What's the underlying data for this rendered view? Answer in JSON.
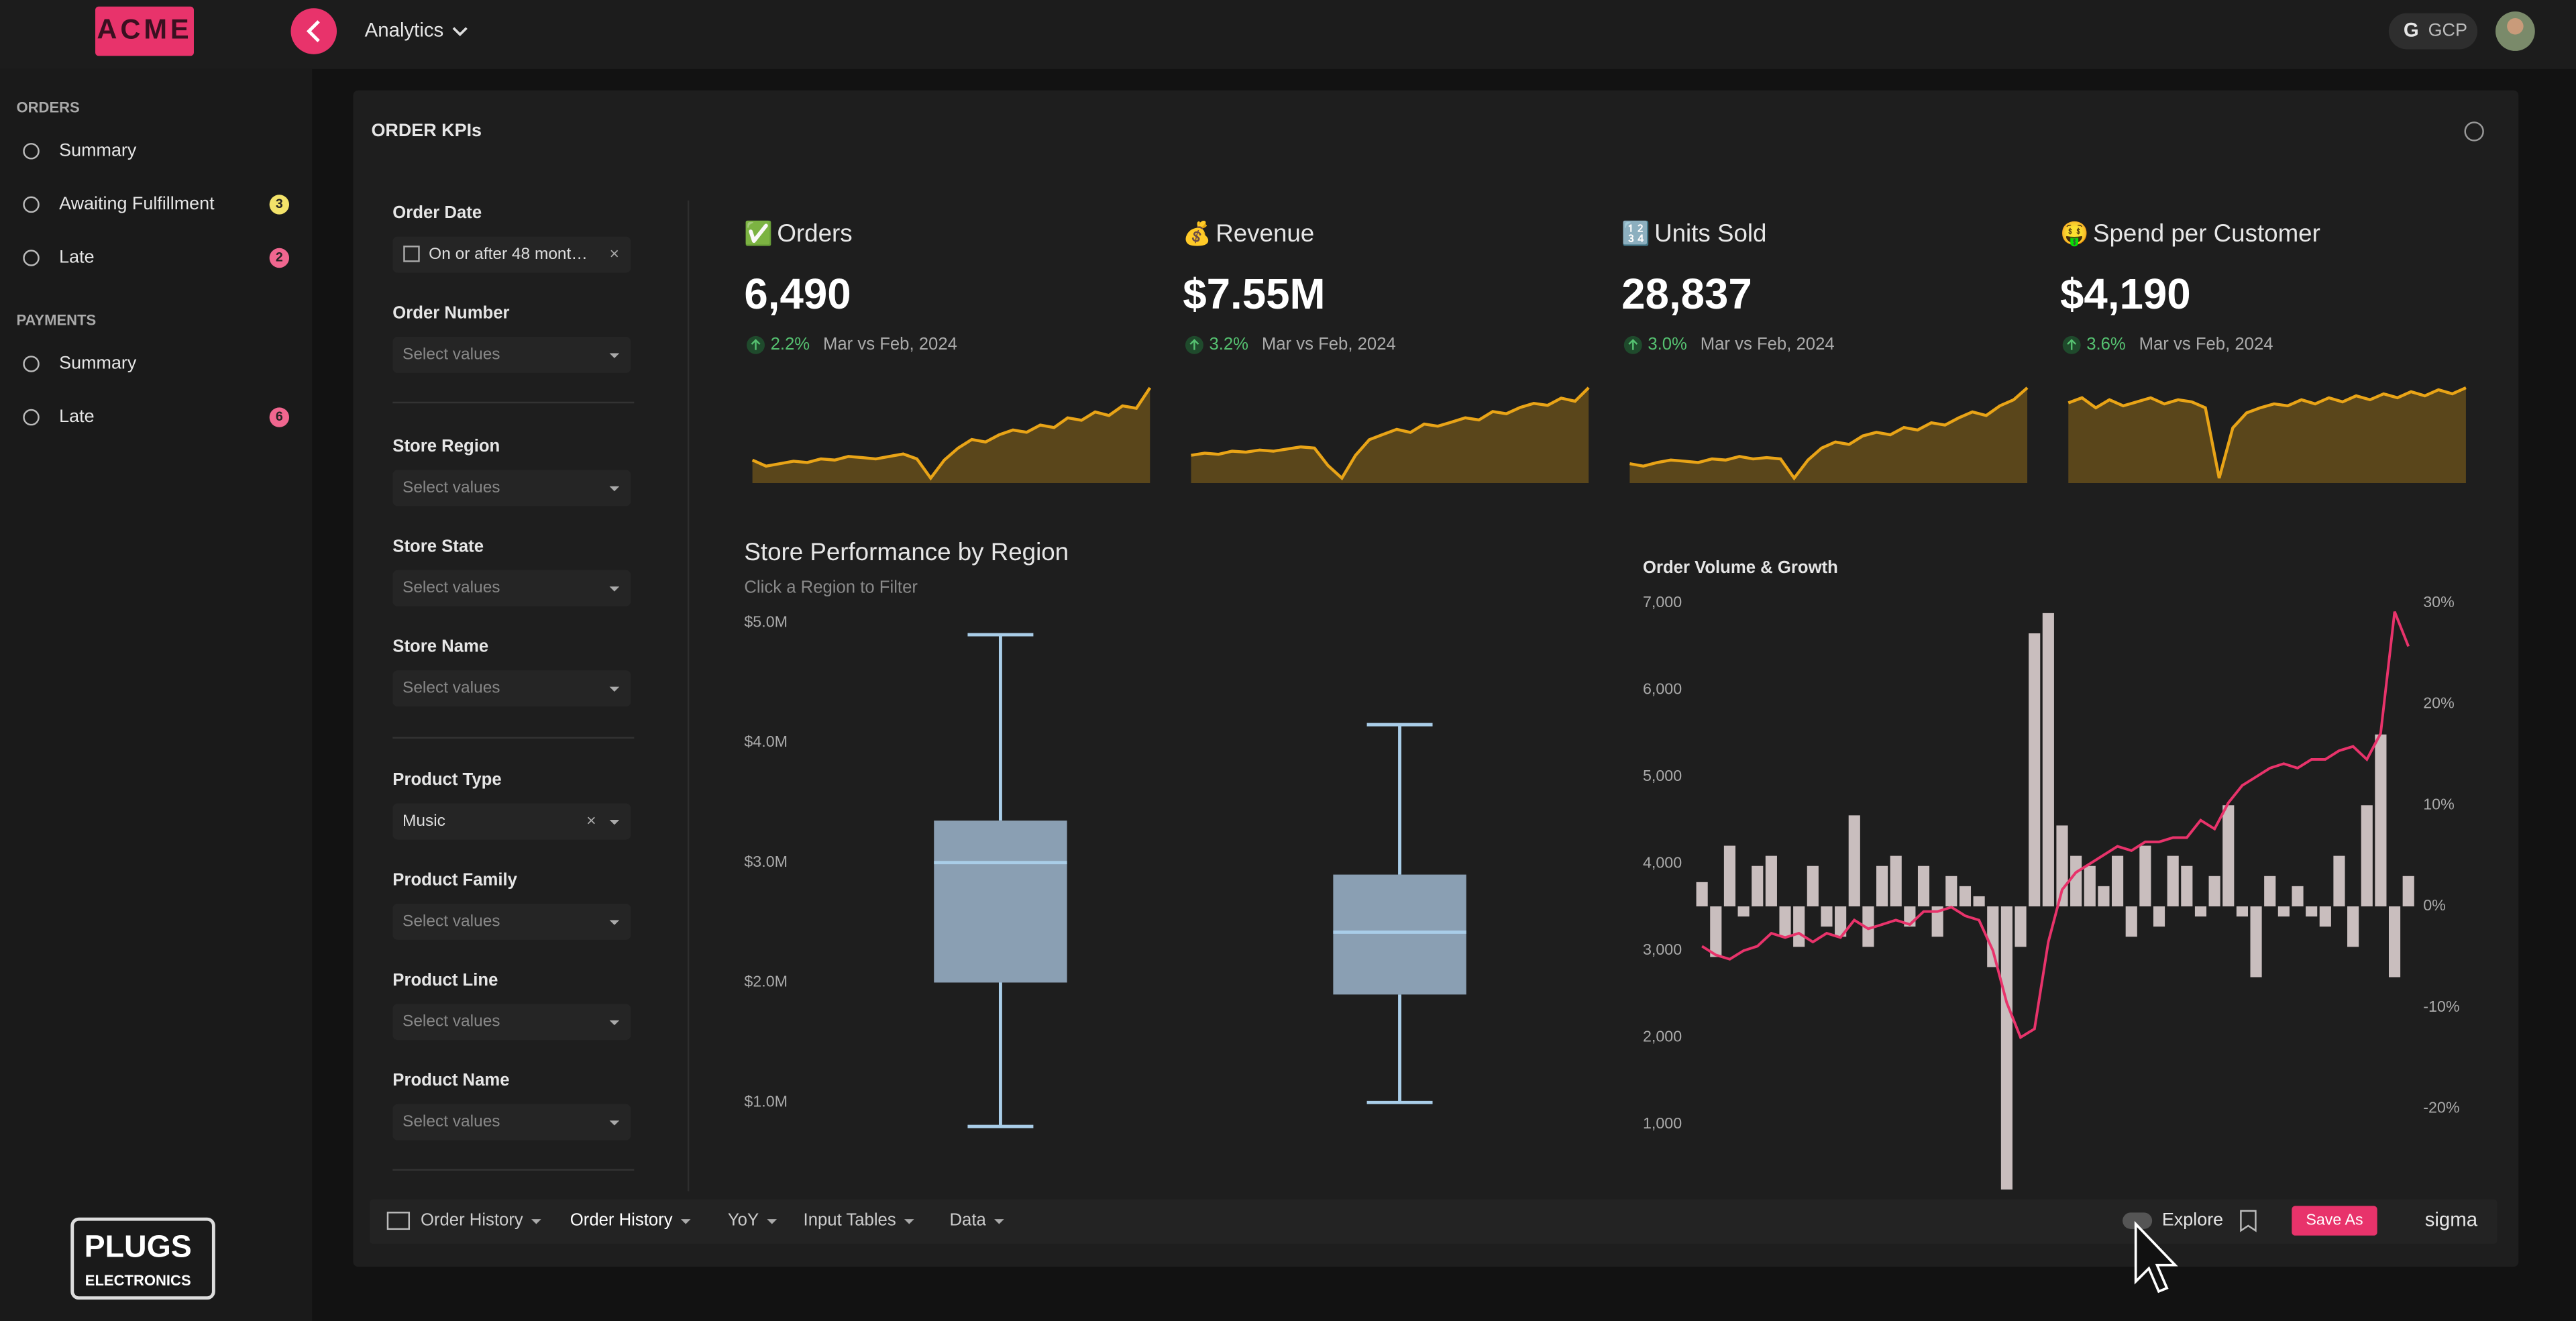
{
  "header": {
    "logo": "ACME",
    "workbook": "Analytics",
    "connection": "GCP"
  },
  "sidebar": {
    "sections": [
      {
        "title": "ORDERS",
        "items": [
          {
            "label": "Summary"
          },
          {
            "label": "Awaiting Fulfillment",
            "badge": "3",
            "badge_color": "#f3e36a"
          },
          {
            "label": "Late",
            "badge": "2",
            "badge_color": "#f0668f"
          }
        ]
      },
      {
        "title": "PAYMENTS",
        "items": [
          {
            "label": "Summary"
          },
          {
            "label": "Late",
            "badge": "6",
            "badge_color": "#f0668f"
          }
        ]
      }
    ],
    "brand": {
      "name": "PLUGS",
      "tagline": "ELECTRONICS"
    }
  },
  "page": {
    "title": "ORDER KPIs",
    "filters": [
      {
        "label": "Order Date",
        "value": "On or after 48 mont…"
      },
      {
        "label": "Order Number",
        "placeholder": "Select values"
      },
      {
        "label": "Store Region",
        "placeholder": "Select values"
      },
      {
        "label": "Store State",
        "placeholder": "Select values"
      },
      {
        "label": "Store Name",
        "placeholder": "Select values"
      },
      {
        "label": "Product Type",
        "value": "Music"
      },
      {
        "label": "Product Family",
        "placeholder": "Select values"
      },
      {
        "label": "Product Line",
        "placeholder": "Select values"
      },
      {
        "label": "Product Name",
        "placeholder": "Select values"
      }
    ]
  },
  "kpis": [
    {
      "icon": "✅",
      "title": "Orders",
      "value": "6,490",
      "change": "2.2%",
      "period": "Mar vs Feb, 2024",
      "color": "#e9a417",
      "sparkline": [
        35,
        30,
        32,
        34,
        33,
        36,
        35,
        38,
        37,
        36,
        38,
        40,
        36,
        20,
        35,
        45,
        52,
        50,
        56,
        60,
        58,
        64,
        62,
        70,
        68,
        75,
        72,
        80,
        78,
        95
      ]
    },
    {
      "icon": "💰",
      "title": "Revenue",
      "value": "$7.55M",
      "change": "3.2%",
      "period": "Mar vs Feb, 2024",
      "color": "#e9a417",
      "sparkline": [
        30,
        32,
        31,
        34,
        33,
        35,
        34,
        36,
        38,
        37,
        20,
        8,
        30,
        45,
        50,
        55,
        52,
        60,
        58,
        62,
        66,
        64,
        72,
        70,
        76,
        80,
        78,
        85,
        82,
        95
      ]
    },
    {
      "icon": "🔢",
      "title": "Units Sold",
      "value": "28,837",
      "change": "3.0%",
      "period": "Mar vs Feb, 2024",
      "color": "#e9a417",
      "sparkline": [
        32,
        30,
        33,
        35,
        34,
        33,
        36,
        35,
        38,
        36,
        37,
        36,
        20,
        35,
        45,
        50,
        48,
        55,
        58,
        56,
        62,
        60,
        66,
        64,
        70,
        75,
        72,
        80,
        85,
        95
      ]
    },
    {
      "icon": "🤑",
      "title": "Spend per Customer",
      "value": "$4,190",
      "change": "3.6%",
      "period": "Mar vs Feb, 2024",
      "color": "#e9a417",
      "sparkline": [
        75,
        80,
        70,
        78,
        72,
        76,
        80,
        74,
        78,
        76,
        70,
        0,
        50,
        65,
        70,
        74,
        72,
        78,
        74,
        80,
        76,
        82,
        78,
        84,
        80,
        86,
        82,
        88,
        84,
        90
      ]
    }
  ],
  "chart_data": [
    {
      "type": "box",
      "title": "Store Performance by Region",
      "subtitle": "Click a Region to Filter",
      "color": "#8a9fb3",
      "line_color": "#a9cde8",
      "boxes": [
        {
          "min": 800000,
          "q1": 2000000,
          "median": 3000000,
          "q3": 3350000,
          "max": 4900000
        },
        {
          "min": 1000000,
          "q1": 1900000,
          "median": 2420000,
          "q3": 2900000,
          "max": 4150000
        }
      ],
      "ylim": [
        500000,
        5000000
      ],
      "yticks": [
        {
          "value": 1000000,
          "label": "$1.0M"
        },
        {
          "value": 2000000,
          "label": "$2.0M"
        },
        {
          "value": 3000000,
          "label": "$3.0M"
        },
        {
          "value": 4000000,
          "label": "$4.0M"
        },
        {
          "value": 5000000,
          "label": "$5.0M"
        }
      ]
    },
    {
      "type": "combo",
      "title": "Order Volume & Growth",
      "series": [
        {
          "type": "bar",
          "axis": "y2",
          "color": "#c9bebe",
          "values": [
            2.4,
            -5,
            6,
            -1,
            4,
            5,
            -3,
            -4,
            4,
            -2,
            -3,
            9,
            -4,
            4,
            5,
            -2,
            4,
            -3,
            3,
            2,
            1,
            -6,
            -28,
            -4,
            27,
            29,
            8,
            5,
            4,
            2,
            5,
            -3,
            6,
            -2,
            5,
            4,
            -1,
            3,
            10,
            -1,
            -7,
            3,
            -1,
            2,
            -1,
            -2,
            5,
            -4,
            10,
            17,
            -7,
            3
          ]
        },
        {
          "type": "line",
          "color": "#e8336b",
          "values": [
            3050,
            2950,
            2900,
            3000,
            3050,
            3200,
            3150,
            3200,
            3100,
            3200,
            3150,
            3350,
            3250,
            3300,
            3350,
            3300,
            3450,
            3450,
            3500,
            3400,
            3350,
            3000,
            2400,
            2000,
            2100,
            3100,
            3700,
            3900,
            4000,
            4100,
            4200,
            4150,
            4250,
            4250,
            4300,
            4300,
            4500,
            4400,
            4700,
            4900,
            5000,
            5100,
            5150,
            5100,
            5200,
            5200,
            5300,
            5350,
            5200,
            5500,
            6900,
            6500
          ]
        }
      ],
      "ylim": [
        250,
        7000
      ],
      "yticks": [
        {
          "value": 1000,
          "label": "1,000"
        },
        {
          "value": 2000,
          "label": "2,000"
        },
        {
          "value": 3000,
          "label": "3,000"
        },
        {
          "value": 4000,
          "label": "4,000"
        },
        {
          "value": 5000,
          "label": "5,000"
        },
        {
          "value": 6000,
          "label": "6,000"
        },
        {
          "value": 7000,
          "label": "7,000"
        }
      ],
      "y2lim": [
        -28,
        30
      ],
      "y2ticks": [
        {
          "value": -20,
          "label": "-20%"
        },
        {
          "value": -10,
          "label": "-10%"
        },
        {
          "value": 0,
          "label": "0%"
        },
        {
          "value": 10,
          "label": "10%"
        },
        {
          "value": 20,
          "label": "20%"
        },
        {
          "value": 30,
          "label": "30%"
        }
      ]
    }
  ],
  "toolbar": {
    "tabs": [
      "Order History",
      "Order History",
      "YoY",
      "Input Tables",
      "Data"
    ],
    "explore": "Explore",
    "save": "Save As",
    "brand": "sigma"
  }
}
